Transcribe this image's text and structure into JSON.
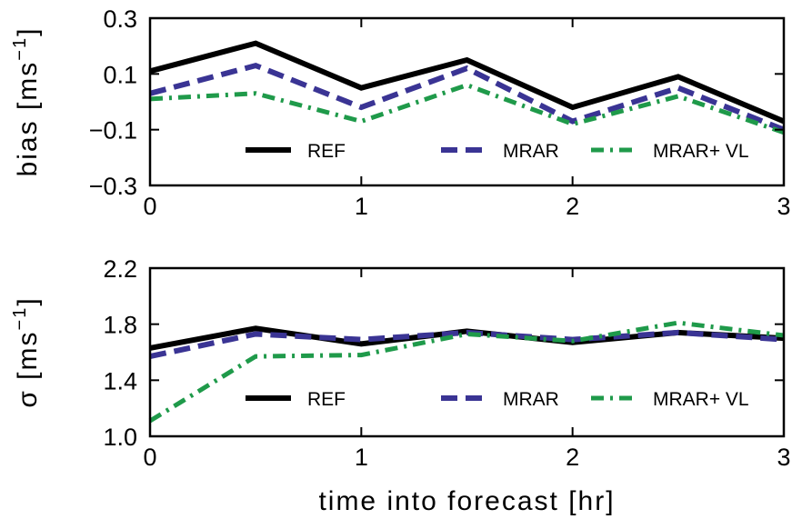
{
  "chart_data": [
    {
      "type": "line",
      "ylabel": {
        "prefix": "bias [ms",
        "sup": "−1",
        "suffix": "]"
      },
      "x": [
        0,
        0.5,
        1,
        1.5,
        2,
        2.5,
        3
      ],
      "xlim": [
        0,
        3
      ],
      "xticks": [
        "0",
        "1",
        "2",
        "3"
      ],
      "ylim": [
        -0.3,
        0.3
      ],
      "yticks": [
        "0.3",
        "0.1",
        "−0.1",
        "−0.3"
      ],
      "ytick_values": [
        0.3,
        0.1,
        -0.1,
        -0.3
      ],
      "legend_position": "lower-center",
      "series": [
        {
          "name": "REF",
          "color": "#000000",
          "style": "solid",
          "values": [
            0.11,
            0.21,
            0.05,
            0.15,
            -0.02,
            0.09,
            -0.07
          ]
        },
        {
          "name": "MRAR",
          "color": "#3a3494",
          "style": "dashed",
          "values": [
            0.03,
            0.13,
            -0.02,
            0.12,
            -0.07,
            0.05,
            -0.1
          ]
        },
        {
          "name": "MRAR+ VL",
          "color": "#1f9a4a",
          "style": "dashdot",
          "values": [
            0.01,
            0.03,
            -0.07,
            0.06,
            -0.08,
            0.02,
            -0.11
          ]
        }
      ]
    },
    {
      "type": "line",
      "ylabel": {
        "prefix": "σ [ms",
        "sup": "−1",
        "suffix": "]"
      },
      "x": [
        0,
        0.5,
        1,
        1.5,
        2,
        2.5,
        3
      ],
      "xlim": [
        0,
        3
      ],
      "xticks": [
        "0",
        "1",
        "2",
        "3"
      ],
      "xlabel": "time into forecast [hr]",
      "ylim": [
        1.0,
        2.2
      ],
      "yticks": [
        "2.2",
        "1.8",
        "1.4",
        "1.0"
      ],
      "ytick_values": [
        2.2,
        1.8,
        1.4,
        1.0
      ],
      "legend_position": "lower-center",
      "series": [
        {
          "name": "REF",
          "color": "#000000",
          "style": "solid",
          "values": [
            1.63,
            1.77,
            1.66,
            1.75,
            1.67,
            1.74,
            1.7
          ]
        },
        {
          "name": "MRAR",
          "color": "#3a3494",
          "style": "dashed",
          "values": [
            1.57,
            1.73,
            1.69,
            1.74,
            1.69,
            1.74,
            1.69
          ]
        },
        {
          "name": "MRAR+ VL",
          "color": "#1f9a4a",
          "style": "dashdot",
          "values": [
            1.11,
            1.57,
            1.58,
            1.73,
            1.68,
            1.81,
            1.72
          ]
        }
      ]
    }
  ]
}
